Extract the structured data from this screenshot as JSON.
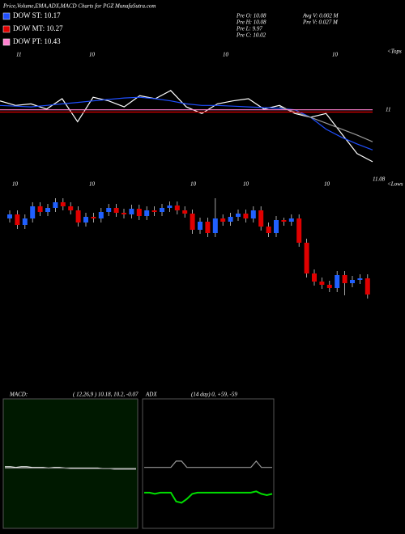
{
  "header": {
    "title": "Price,Volume,EMA,ADX,MACD Charts for PGZ MunafaSutra.com",
    "legend": [
      {
        "label": "DOW ST: 10.17",
        "color": "#1f4fff"
      },
      {
        "label": "DOW MT: 10.27",
        "color": "#e00000"
      },
      {
        "label": "DOW PT: 10.43",
        "color": "#ff80d0"
      }
    ],
    "stats_left": [
      "Pre   O: 10.08",
      "Pre   H: 10.08",
      "Pre   L: 9.97",
      "Pre   C: 10.02"
    ],
    "stats_right": [
      "Avg V: 0.002  M",
      "Pre   V: 0.027  M"
    ],
    "top_labels": [
      "11",
      "10",
      "10",
      "10"
    ],
    "mid_labels": [
      "10",
      "10",
      "10",
      "10",
      "10"
    ],
    "right_labels": [
      "<Tops",
      "11",
      "11.08",
      "<Lows"
    ]
  },
  "chart_data": [
    {
      "type": "line",
      "ylim": [
        10,
        11.2
      ],
      "series": [
        {
          "name": "price",
          "color": "#ffffff",
          "values": [
            10.93,
            10.87,
            10.89,
            10.82,
            10.96,
            10.65,
            10.98,
            10.93,
            10.85,
            11.0,
            10.96,
            11.07,
            10.85,
            10.76,
            10.89,
            10.93,
            10.96,
            10.82,
            10.87,
            10.76,
            10.71,
            10.76,
            10.49,
            10.22,
            10.11
          ]
        },
        {
          "name": "ema-short",
          "color": "#1f4fff",
          "values": [
            10.87,
            10.86,
            10.85,
            10.87,
            10.89,
            10.91,
            10.93,
            10.95,
            10.97,
            10.98,
            10.96,
            10.93,
            10.89,
            10.87,
            10.87,
            10.86,
            10.85,
            10.84,
            10.83,
            10.81,
            10.71,
            10.55,
            10.44,
            10.35,
            10.27
          ]
        },
        {
          "name": "ema-long",
          "color": "#999999",
          "values": [
            null,
            null,
            null,
            null,
            null,
            null,
            null,
            null,
            null,
            null,
            null,
            null,
            null,
            null,
            null,
            null,
            null,
            null,
            10.85,
            10.78,
            10.71,
            10.63,
            10.55,
            10.47,
            10.38
          ]
        },
        {
          "name": "dow-pt",
          "color": "#ff80d0",
          "values": [
            10.81,
            10.81,
            10.81,
            10.81,
            10.81,
            10.81,
            10.81,
            10.81,
            10.81,
            10.81,
            10.81,
            10.81,
            10.81,
            10.81,
            10.81,
            10.81,
            10.81,
            10.81,
            10.81,
            10.81,
            10.81,
            10.81,
            10.81,
            10.81,
            10.81
          ]
        },
        {
          "name": "dow-mt",
          "color": "#e00000",
          "values": [
            10.78,
            10.78,
            10.78,
            10.78,
            10.78,
            10.78,
            10.78,
            10.78,
            10.78,
            10.78,
            10.78,
            10.78,
            10.78,
            10.78,
            10.78,
            10.78,
            10.78,
            10.78,
            10.78,
            10.78,
            10.78,
            10.78,
            10.78,
            10.78,
            10.78
          ]
        }
      ]
    },
    {
      "type": "candlestick",
      "ylim": [
        9.7,
        11.3
      ],
      "up_color": "#2060ff",
      "down_color": "#e00000",
      "open": [
        10.8,
        10.85,
        10.72,
        10.8,
        10.95,
        10.88,
        10.93,
        11.0,
        10.95,
        10.9,
        10.75,
        10.82,
        10.8,
        10.88,
        10.93,
        10.87,
        10.85,
        10.92,
        10.83,
        10.9,
        10.88,
        10.93,
        10.96,
        10.9,
        10.86,
        10.66,
        10.76,
        10.62,
        10.8,
        10.76,
        10.82,
        10.86,
        10.8,
        10.9,
        10.7,
        10.62,
        10.78,
        10.76,
        10.8,
        10.5,
        10.12,
        10.02,
        9.98,
        9.94,
        10.1,
        10.0,
        10.04,
        10.06
      ],
      "high": [
        10.9,
        10.9,
        10.85,
        11.0,
        11.0,
        10.98,
        11.05,
        11.05,
        11.0,
        10.95,
        10.87,
        10.87,
        10.93,
        10.98,
        10.98,
        10.92,
        10.97,
        10.97,
        10.95,
        10.95,
        10.98,
        11.01,
        11.01,
        10.95,
        10.91,
        10.81,
        10.81,
        11.05,
        10.85,
        10.87,
        10.91,
        10.91,
        10.95,
        10.95,
        10.75,
        10.83,
        10.81,
        10.85,
        10.85,
        10.55,
        10.17,
        10.07,
        10.03,
        10.15,
        10.15,
        10.09,
        10.11,
        10.11
      ],
      "low": [
        10.75,
        10.67,
        10.67,
        10.75,
        10.83,
        10.83,
        10.88,
        10.9,
        10.85,
        10.7,
        10.7,
        10.75,
        10.75,
        10.83,
        10.82,
        10.8,
        10.8,
        10.78,
        10.78,
        10.83,
        10.83,
        10.88,
        10.85,
        10.81,
        10.61,
        10.61,
        10.57,
        10.57,
        10.71,
        10.71,
        10.77,
        10.75,
        10.75,
        10.65,
        10.57,
        10.57,
        10.71,
        10.71,
        10.45,
        10.07,
        9.97,
        9.93,
        9.89,
        9.89,
        9.85,
        9.95,
        9.99,
        9.81
      ],
      "close": [
        10.85,
        10.72,
        10.8,
        10.95,
        10.88,
        10.93,
        11.0,
        10.95,
        10.9,
        10.75,
        10.82,
        10.8,
        10.88,
        10.93,
        10.87,
        10.85,
        10.92,
        10.83,
        10.9,
        10.88,
        10.93,
        10.96,
        10.9,
        10.86,
        10.66,
        10.76,
        10.62,
        10.8,
        10.76,
        10.82,
        10.86,
        10.8,
        10.9,
        10.7,
        10.62,
        10.78,
        10.76,
        10.8,
        10.5,
        10.12,
        10.02,
        9.98,
        9.94,
        10.1,
        10.0,
        10.04,
        10.06,
        9.86
      ]
    },
    {
      "type": "line",
      "title": "MACD:",
      "subtitle": "( 12,26,9 ) 10.18, 10.2, -0.07",
      "ylim": [
        -1,
        1
      ],
      "series": [
        {
          "name": "macd",
          "color": "#ffffff",
          "values": [
            -0.05,
            -0.05,
            -0.06,
            -0.05,
            -0.05,
            -0.06,
            -0.06,
            -0.06,
            -0.07,
            -0.06,
            -0.06,
            -0.07,
            -0.07,
            -0.07,
            -0.07,
            -0.07,
            -0.07,
            -0.07,
            -0.08,
            -0.08,
            -0.08,
            -0.08,
            -0.08,
            -0.08,
            -0.08
          ]
        },
        {
          "name": "signal",
          "color": "#888888",
          "values": [
            -0.07,
            -0.07,
            -0.07,
            -0.07,
            -0.07,
            -0.07,
            -0.07,
            -0.07,
            -0.07,
            -0.07,
            -0.07,
            -0.07,
            -0.08,
            -0.08,
            -0.08,
            -0.08,
            -0.08,
            -0.08,
            -0.08,
            -0.08,
            -0.09,
            -0.09,
            -0.09,
            -0.09,
            -0.09
          ]
        }
      ]
    },
    {
      "type": "line",
      "title": "ADX",
      "subtitle": "(14  day) 0, +59, -59",
      "ylim": [
        0,
        100
      ],
      "series": [
        {
          "name": "di",
          "color": "#999999",
          "values": [
            47,
            47,
            47,
            47,
            47,
            47,
            52,
            52,
            47,
            47,
            47,
            47,
            47,
            47,
            47,
            47,
            47,
            47,
            47,
            47,
            47,
            52,
            47,
            47,
            47
          ]
        },
        {
          "name": "adx",
          "color": "#00dd00",
          "values": [
            27,
            27,
            26,
            27,
            27,
            27,
            20,
            19,
            22,
            26,
            27,
            27,
            27,
            27,
            27,
            27,
            27,
            27,
            27,
            27,
            27,
            28,
            26,
            25,
            26
          ]
        }
      ]
    }
  ]
}
